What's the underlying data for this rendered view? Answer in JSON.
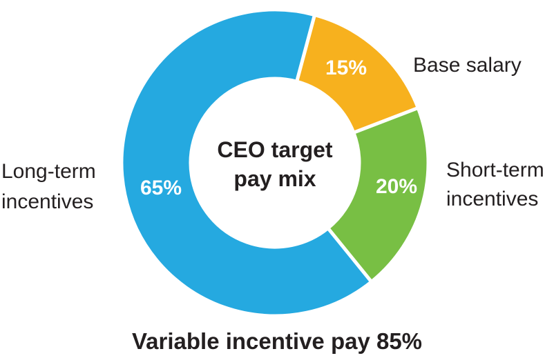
{
  "chart_data": {
    "type": "pie",
    "title": "CEO target pay mix",
    "footer": "Variable incentive pay 85%",
    "slices": [
      {
        "label_lines": [
          "Base salary"
        ],
        "value": 15,
        "value_label": "15%",
        "color": "#f7b11e"
      },
      {
        "label_lines": [
          "Short-term",
          "incentives"
        ],
        "value": 20,
        "value_label": "20%",
        "color": "#78bf44"
      },
      {
        "label_lines": [
          "Long-term",
          "incentives"
        ],
        "value": 65,
        "value_label": "65%",
        "color": "#25a9e0"
      }
    ],
    "title_lines": [
      "CEO target",
      "pay mix"
    ]
  }
}
